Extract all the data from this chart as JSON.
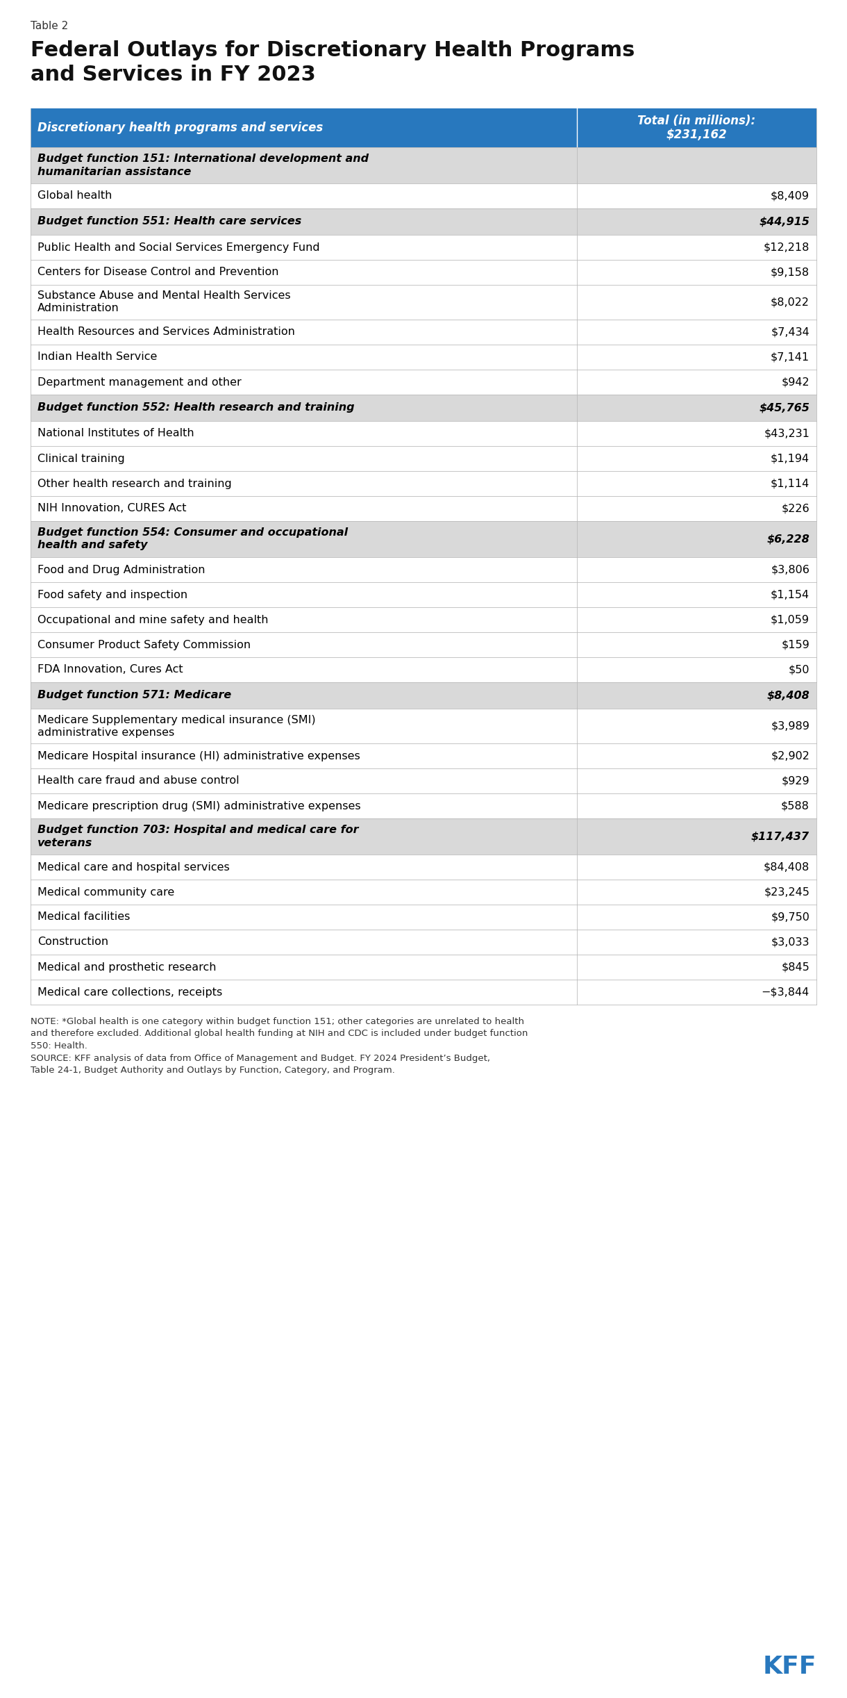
{
  "table_label": "Table 2",
  "title": "Federal Outlays for Discretionary Health Programs\nand Services in FY 2023",
  "header_col1": "Discretionary health programs and services",
  "header_col2": "Total (in millions):\n$231,162",
  "header_bg": "#2878BE",
  "header_text_color": "#FFFFFF",
  "subheader_bg": "#D9D9D9",
  "subheader_text_color": "#000000",
  "row_bg": "#FFFFFF",
  "rows": [
    {
      "type": "subheader",
      "col1": "Budget function 151: International development and\nhumanitarian assistance",
      "col2": "",
      "multiline": true
    },
    {
      "type": "data",
      "col1": "Global health",
      "col2": "$8,409",
      "multiline": false
    },
    {
      "type": "subheader",
      "col1": "Budget function 551: Health care services",
      "col2": "$44,915",
      "multiline": false
    },
    {
      "type": "data",
      "col1": "Public Health and Social Services Emergency Fund",
      "col2": "$12,218",
      "multiline": false
    },
    {
      "type": "data",
      "col1": "Centers for Disease Control and Prevention",
      "col2": "$9,158",
      "multiline": false
    },
    {
      "type": "data",
      "col1": "Substance Abuse and Mental Health Services\nAdministration",
      "col2": "$8,022",
      "multiline": true
    },
    {
      "type": "data",
      "col1": "Health Resources and Services Administration",
      "col2": "$7,434",
      "multiline": false
    },
    {
      "type": "data",
      "col1": "Indian Health Service",
      "col2": "$7,141",
      "multiline": false
    },
    {
      "type": "data",
      "col1": "Department management and other",
      "col2": "$942",
      "multiline": false
    },
    {
      "type": "subheader",
      "col1": "Budget function 552: Health research and training",
      "col2": "$45,765",
      "multiline": false
    },
    {
      "type": "data",
      "col1": "National Institutes of Health",
      "col2": "$43,231",
      "multiline": false
    },
    {
      "type": "data",
      "col1": "Clinical training",
      "col2": "$1,194",
      "multiline": false
    },
    {
      "type": "data",
      "col1": "Other health research and training",
      "col2": "$1,114",
      "multiline": false
    },
    {
      "type": "data",
      "col1": "NIH Innovation, CURES Act",
      "col2": "$226",
      "multiline": false
    },
    {
      "type": "subheader",
      "col1": "Budget function 554: Consumer and occupational\nhealth and safety",
      "col2": "$6,228",
      "multiline": true
    },
    {
      "type": "data",
      "col1": "Food and Drug Administration",
      "col2": "$3,806",
      "multiline": false
    },
    {
      "type": "data",
      "col1": "Food safety and inspection",
      "col2": "$1,154",
      "multiline": false
    },
    {
      "type": "data",
      "col1": "Occupational and mine safety and health",
      "col2": "$1,059",
      "multiline": false
    },
    {
      "type": "data",
      "col1": "Consumer Product Safety Commission",
      "col2": "$159",
      "multiline": false
    },
    {
      "type": "data",
      "col1": "FDA Innovation, Cures Act",
      "col2": "$50",
      "multiline": false
    },
    {
      "type": "subheader",
      "col1": "Budget function 571: Medicare",
      "col2": "$8,408",
      "multiline": false
    },
    {
      "type": "data",
      "col1": "Medicare Supplementary medical insurance (SMI)\nadministrative expenses",
      "col2": "$3,989",
      "multiline": true
    },
    {
      "type": "data",
      "col1": "Medicare Hospital insurance (HI) administrative expenses",
      "col2": "$2,902",
      "multiline": false
    },
    {
      "type": "data",
      "col1": "Health care fraud and abuse control",
      "col2": "$929",
      "multiline": false
    },
    {
      "type": "data",
      "col1": "Medicare prescription drug (SMI) administrative expenses",
      "col2": "$588",
      "multiline": false
    },
    {
      "type": "subheader",
      "col1": "Budget function 703: Hospital and medical care for\nveterans",
      "col2": "$117,437",
      "multiline": true
    },
    {
      "type": "data",
      "col1": "Medical care and hospital services",
      "col2": "$84,408",
      "multiline": false
    },
    {
      "type": "data",
      "col1": "Medical community care",
      "col2": "$23,245",
      "multiline": false
    },
    {
      "type": "data",
      "col1": "Medical facilities",
      "col2": "$9,750",
      "multiline": false
    },
    {
      "type": "data",
      "col1": "Construction",
      "col2": "$3,033",
      "multiline": false
    },
    {
      "type": "data",
      "col1": "Medical and prosthetic research",
      "col2": "$845",
      "multiline": false
    },
    {
      "type": "data",
      "col1": "Medical care collections, receipts",
      "col2": "−$3,844",
      "multiline": false
    }
  ],
  "note_text": "NOTE: *Global health is one category within budget function 151; other categories are unrelated to health\nand therefore excluded. Additional global health funding at NIH and CDC is included under budget function\n550: Health.\nSOURCE: KFF analysis of data from Office of Management and Budget. FY 2024 President’s Budget,\nTable 24-1, Budget Authority and Outlays by Function, Category, and Program.",
  "kff_color": "#2878BE",
  "bg_color": "#FFFFFF",
  "col_split": 0.695
}
